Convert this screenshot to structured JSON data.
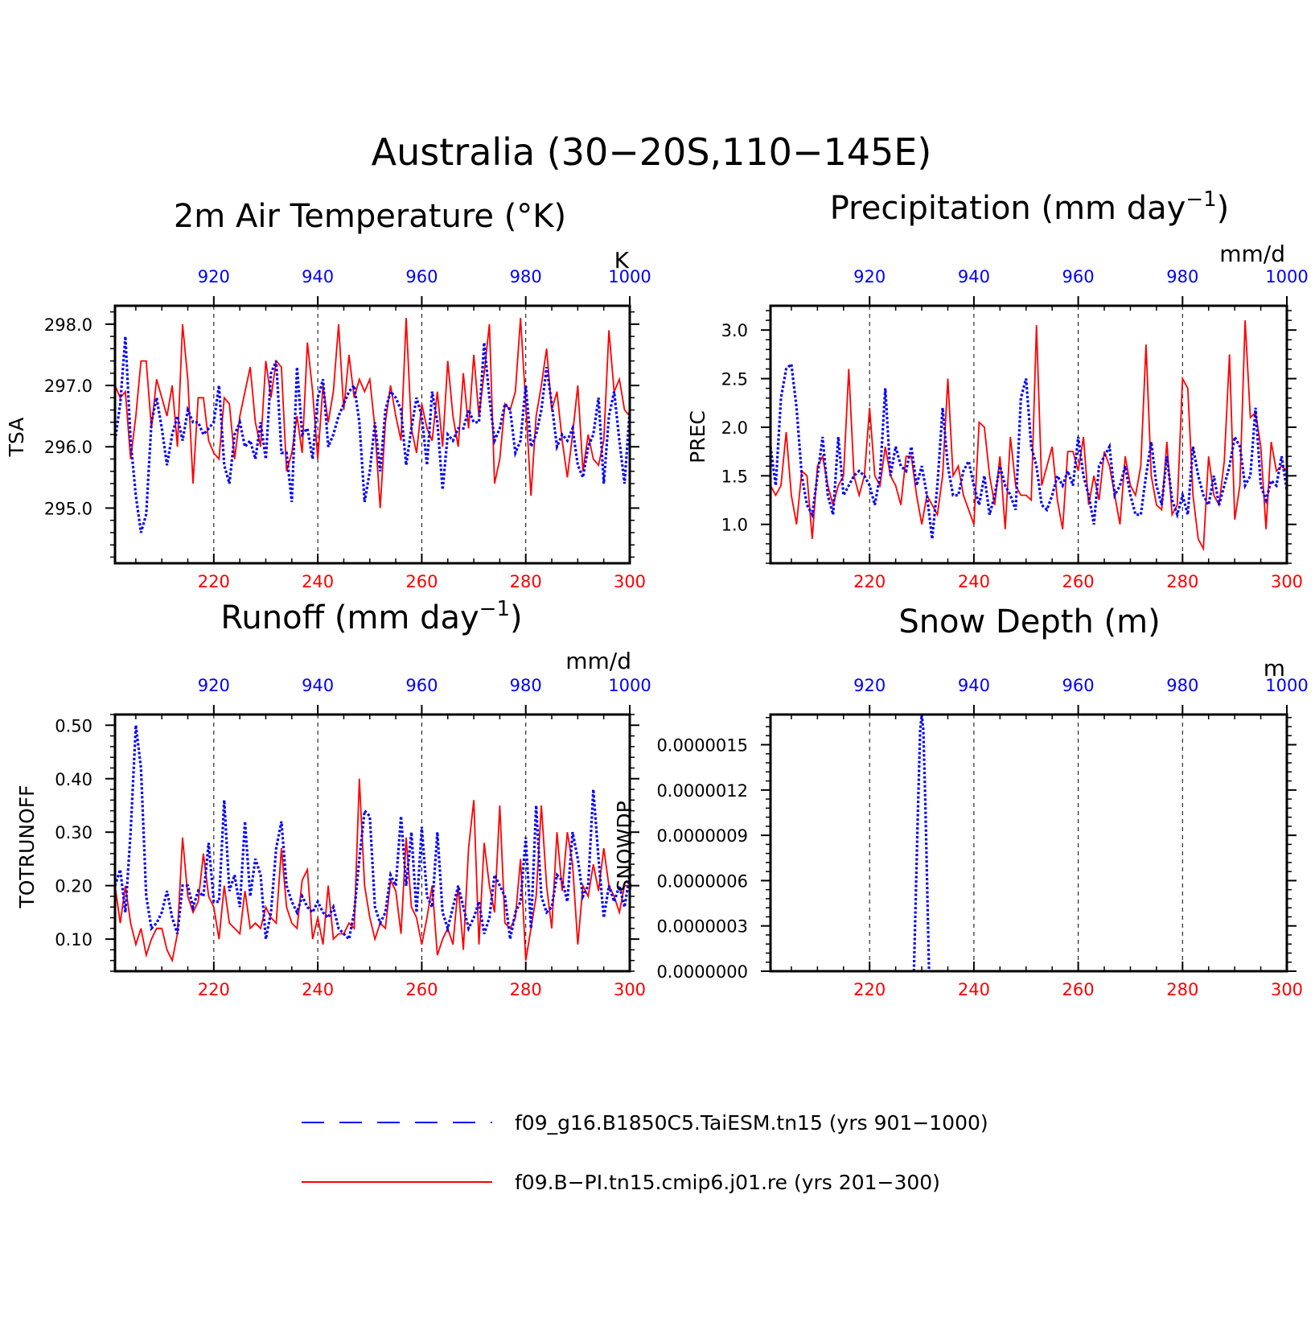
{
  "title": "Australia (30−20S,110−145E)",
  "colors": {
    "series1": "#0000ff",
    "series2": "#ff0000",
    "axis": "#000000"
  },
  "chart_data": [
    {
      "type": "line",
      "title": "2m Air Temperature (°K)",
      "ylabel": "TSA",
      "units": "K",
      "xlim_bottom": [
        201,
        300
      ],
      "xlim_top": [
        901,
        1000
      ],
      "xticks_bottom": [
        "220",
        "240",
        "260",
        "280",
        "300"
      ],
      "xticks_top": [
        "920",
        "940",
        "960",
        "980",
        "1000"
      ],
      "ylim": [
        294.1,
        298.3
      ],
      "yticks": [
        "295.0",
        "296.0",
        "297.0",
        "298.0"
      ],
      "ytick_values": [
        295,
        296,
        297,
        298
      ],
      "grid": "vertical dashed",
      "series": [
        {
          "values": [
            296.1,
            296.7,
            297.8,
            296.1,
            295.2,
            294.6,
            294.9,
            296.4,
            296.8,
            296.3,
            295.7,
            296.2,
            296.5,
            296.1,
            296.6,
            296.4,
            296.4,
            296.2,
            296.3,
            296.4,
            297.0,
            295.7,
            295.4,
            296.2,
            296.4,
            296.0,
            296.1,
            295.8,
            296.4,
            295.8,
            297.2,
            297.4,
            295.9,
            295.9,
            295.1,
            297.3,
            296.2,
            296.3,
            295.8,
            296.8,
            297.1,
            296.0,
            296.2,
            296.5,
            296.7,
            296.9,
            297.0,
            296.4,
            295.1,
            295.6,
            296.4,
            295.6,
            296.6,
            296.9,
            296.8,
            296.6,
            295.7,
            296.3,
            296.8,
            296.5,
            295.7,
            296.9,
            296.4,
            295.3,
            296.2,
            296.1,
            296.3,
            296.3,
            296.6,
            296.4,
            296.4,
            297.7,
            296.8,
            296.1,
            296.3,
            296.7,
            296.6,
            295.9,
            296.1,
            297.0,
            296.0,
            296.2,
            296.6,
            297.3,
            296.7,
            296.0,
            296.2,
            296.1,
            296.3,
            295.7,
            295.5,
            296.0,
            296.2,
            296.8,
            295.4,
            296.5,
            296.9,
            296.1,
            295.4,
            296.6
          ]
        },
        {
          "values": [
            297.0,
            296.8,
            296.9,
            295.8,
            296.5,
            297.4,
            297.4,
            296.3,
            297.1,
            296.8,
            296.5,
            297.0,
            296.0,
            298.0,
            297.1,
            295.4,
            296.8,
            296.8,
            296.1,
            295.9,
            295.8,
            296.8,
            296.7,
            295.8,
            296.5,
            296.9,
            297.3,
            296.4,
            296.0,
            297.4,
            296.8,
            297.4,
            297.3,
            295.6,
            295.9,
            296.5,
            295.9,
            297.7,
            296.9,
            295.8,
            297.0,
            296.4,
            296.9,
            298.0,
            296.6,
            297.5,
            296.8,
            297.1,
            296.9,
            297.1,
            296.3,
            295.0,
            296.4,
            297.0,
            296.5,
            296.1,
            298.1,
            296.3,
            295.9,
            296.7,
            296.3,
            296.1,
            296.9,
            296.0,
            297.4,
            296.5,
            296.0,
            297.2,
            296.3,
            297.5,
            296.5,
            297.2,
            298.0,
            295.4,
            295.8,
            296.7,
            296.6,
            296.9,
            298.1,
            296.7,
            295.2,
            296.5,
            297.0,
            297.6,
            296.6,
            296.9,
            296.1,
            295.5,
            296.2,
            297.0,
            295.6,
            296.2,
            295.8,
            295.7,
            296.1,
            297.9,
            296.9,
            297.1,
            296.6,
            296.5
          ]
        }
      ]
    },
    {
      "type": "line",
      "title": "Precipitation (mm day",
      "title_sup": "−1",
      "ylabel": "PREC",
      "units": "mm/d",
      "xlim_bottom": [
        201,
        300
      ],
      "xlim_top": [
        901,
        1000
      ],
      "xticks_bottom": [
        "220",
        "240",
        "260",
        "280",
        "300"
      ],
      "xticks_top": [
        "920",
        "940",
        "960",
        "980",
        "1000"
      ],
      "ylim": [
        0.6,
        3.25
      ],
      "yticks": [
        "1.0",
        "1.5",
        "2.0",
        "2.5",
        "3.0"
      ],
      "ytick_values": [
        1.0,
        1.5,
        2.0,
        2.5,
        3.0
      ],
      "grid": "vertical dashed",
      "series": [
        {
          "values": [
            1.8,
            1.4,
            2.3,
            2.6,
            2.65,
            2.2,
            1.5,
            1.2,
            1.1,
            1.5,
            1.9,
            1.3,
            1.1,
            1.9,
            1.3,
            1.4,
            1.5,
            1.55,
            1.5,
            1.4,
            1.2,
            1.5,
            2.4,
            1.5,
            1.8,
            1.6,
            1.55,
            1.8,
            1.4,
            1.6,
            1.3,
            0.85,
            1.4,
            2.2,
            1.6,
            1.3,
            1.3,
            1.55,
            1.65,
            1.4,
            1.2,
            1.5,
            1.1,
            1.3,
            1.6,
            1.4,
            1.3,
            1.15,
            2.3,
            2.5,
            1.8,
            1.6,
            1.2,
            1.15,
            1.3,
            1.5,
            1.4,
            1.55,
            1.4,
            1.9,
            1.5,
            1.3,
            1.0,
            1.6,
            1.7,
            1.8,
            1.3,
            1.4,
            1.6,
            1.3,
            1.1,
            1.1,
            1.5,
            1.85,
            1.4,
            1.2,
            1.7,
            1.25,
            1.1,
            1.3,
            1.1,
            1.8,
            1.5,
            1.3,
            1.2,
            1.5,
            1.2,
            1.4,
            1.6,
            1.9,
            1.8,
            1.4,
            1.5,
            2.2,
            1.4,
            1.25,
            1.45,
            1.4,
            1.7,
            1.35
          ]
        },
        {
          "values": [
            1.4,
            1.3,
            1.4,
            1.95,
            1.3,
            1.0,
            1.55,
            1.5,
            0.85,
            1.6,
            1.7,
            1.4,
            1.2,
            1.4,
            1.5,
            2.6,
            1.5,
            1.3,
            1.5,
            2.2,
            1.5,
            1.4,
            1.8,
            1.5,
            1.4,
            1.2,
            1.7,
            1.7,
            1.3,
            1.0,
            1.3,
            1.2,
            1.1,
            1.5,
            2.5,
            1.5,
            1.6,
            1.3,
            1.15,
            1.0,
            2.05,
            2.0,
            1.5,
            1.2,
            1.7,
            0.95,
            1.9,
            1.4,
            1.3,
            1.3,
            1.25,
            3.05,
            1.4,
            1.6,
            1.8,
            1.25,
            0.95,
            1.75,
            1.75,
            1.55,
            1.9,
            1.2,
            1.5,
            1.25,
            1.75,
            1.6,
            1.3,
            1.0,
            1.7,
            1.4,
            1.3,
            1.6,
            2.85,
            1.5,
            1.2,
            1.15,
            1.85,
            1.1,
            1.2,
            2.5,
            2.4,
            1.3,
            0.85,
            0.75,
            1.7,
            1.3,
            1.2,
            1.65,
            2.75,
            1.05,
            1.4,
            3.1,
            2.1,
            2.15,
            1.8,
            0.95,
            1.85,
            1.55,
            1.6,
            1.55
          ]
        }
      ]
    },
    {
      "type": "line",
      "title": "Runoff (mm day",
      "title_sup": "−1",
      "ylabel": "TOTRUNOFF",
      "units": "mm/d",
      "xlim_bottom": [
        201,
        300
      ],
      "xlim_top": [
        901,
        1000
      ],
      "xticks_bottom": [
        "220",
        "240",
        "260",
        "280",
        "300"
      ],
      "xticks_top": [
        "920",
        "940",
        "960",
        "980",
        "1000"
      ],
      "ylim": [
        0.04,
        0.52
      ],
      "yticks": [
        "0.10",
        "0.20",
        "0.30",
        "0.40",
        "0.50"
      ],
      "ytick_values": [
        0.1,
        0.2,
        0.3,
        0.4,
        0.5
      ],
      "grid": "vertical dashed",
      "series": [
        {
          "values": [
            0.2,
            0.23,
            0.15,
            0.3,
            0.5,
            0.42,
            0.18,
            0.12,
            0.13,
            0.15,
            0.19,
            0.14,
            0.11,
            0.2,
            0.2,
            0.16,
            0.19,
            0.18,
            0.28,
            0.17,
            0.17,
            0.36,
            0.19,
            0.22,
            0.16,
            0.32,
            0.18,
            0.25,
            0.22,
            0.1,
            0.15,
            0.27,
            0.32,
            0.2,
            0.17,
            0.15,
            0.18,
            0.16,
            0.15,
            0.17,
            0.15,
            0.14,
            0.16,
            0.12,
            0.11,
            0.1,
            0.15,
            0.25,
            0.34,
            0.33,
            0.16,
            0.13,
            0.15,
            0.22,
            0.2,
            0.33,
            0.2,
            0.3,
            0.15,
            0.31,
            0.18,
            0.16,
            0.3,
            0.15,
            0.12,
            0.16,
            0.2,
            0.16,
            0.12,
            0.14,
            0.17,
            0.11,
            0.14,
            0.22,
            0.2,
            0.18,
            0.1,
            0.15,
            0.17,
            0.29,
            0.12,
            0.35,
            0.18,
            0.15,
            0.16,
            0.22,
            0.21,
            0.17,
            0.3,
            0.25,
            0.18,
            0.2,
            0.38,
            0.25,
            0.14,
            0.2,
            0.17,
            0.2,
            0.16,
            0.22
          ]
        },
        {
          "values": [
            0.2,
            0.13,
            0.2,
            0.13,
            0.09,
            0.12,
            0.07,
            0.1,
            0.12,
            0.12,
            0.08,
            0.06,
            0.11,
            0.29,
            0.18,
            0.15,
            0.17,
            0.26,
            0.18,
            0.16,
            0.1,
            0.2,
            0.13,
            0.12,
            0.11,
            0.19,
            0.12,
            0.13,
            0.12,
            0.16,
            0.14,
            0.13,
            0.27,
            0.16,
            0.13,
            0.12,
            0.21,
            0.23,
            0.1,
            0.14,
            0.09,
            0.2,
            0.1,
            0.11,
            0.11,
            0.13,
            0.12,
            0.4,
            0.2,
            0.14,
            0.1,
            0.13,
            0.12,
            0.21,
            0.19,
            0.11,
            0.29,
            0.16,
            0.14,
            0.09,
            0.14,
            0.2,
            0.07,
            0.1,
            0.12,
            0.09,
            0.2,
            0.08,
            0.27,
            0.36,
            0.09,
            0.28,
            0.2,
            0.15,
            0.35,
            0.13,
            0.12,
            0.14,
            0.25,
            0.06,
            0.12,
            0.18,
            0.35,
            0.2,
            0.12,
            0.3,
            0.19,
            0.3,
            0.24,
            0.09,
            0.2,
            0.18,
            0.24,
            0.19,
            0.27,
            0.2,
            0.18,
            0.15,
            0.2,
            0.2
          ]
        }
      ]
    },
    {
      "type": "line",
      "title": "Snow Depth (m)",
      "ylabel": "SNOWDP",
      "units": "m",
      "xlim_bottom": [
        201,
        300
      ],
      "xlim_top": [
        901,
        1000
      ],
      "xticks_bottom": [
        "220",
        "240",
        "260",
        "280",
        "300"
      ],
      "xticks_top": [
        "920",
        "940",
        "960",
        "980",
        "1000"
      ],
      "ylim": [
        0,
        1.7e-06
      ],
      "yticks": [
        "0.0000000",
        "0.0000003",
        "0.0000006",
        "0.0000009",
        "0.0000012",
        "0.0000015"
      ],
      "ytick_values": [
        0,
        3e-07,
        6e-07,
        9e-07,
        1.2e-06,
        1.5e-06
      ],
      "grid": "vertical dashed",
      "series": [
        {
          "x": [
            928.5,
            929.3,
            929.7,
            930.0,
            930.3,
            930.7,
            931.4
          ],
          "values": [
            0,
            1.1e-06,
            1.6e-06,
            1.7e-06,
            1.6e-06,
            1.1e-06,
            0
          ]
        },
        {
          "values": []
        }
      ]
    }
  ],
  "legend": [
    {
      "label": "f09_g16.B1850C5.TaiESM.tn15 (yrs 901−1000)",
      "style": "dashed",
      "color": "#0000ff"
    },
    {
      "label": "f09.B−PI.tn15.cmip6.j01.re (yrs 201−300)",
      "style": "solid",
      "color": "#ff0000"
    }
  ]
}
